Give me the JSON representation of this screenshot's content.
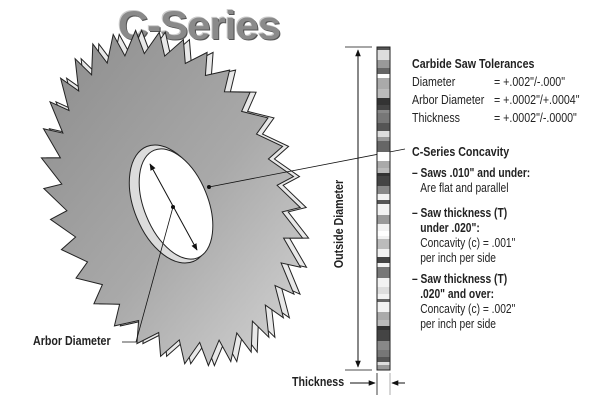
{
  "title": "C-Series",
  "tolerances": {
    "heading": "Carbide Saw Tolerances",
    "rows": [
      {
        "label": "Diameter",
        "value": "= +.002\"/-.000\""
      },
      {
        "label": "Arbor Diameter",
        "value": "= +.0002\"/+.0004\""
      },
      {
        "label": "Thickness",
        "value": "= +.0002\"/-.0000\""
      }
    ]
  },
  "concavity": {
    "heading": "C-Series Concavity",
    "items": [
      {
        "bold": "– Saws .010\" and under:",
        "text": [
          "Are flat and parallel"
        ]
      },
      {
        "bold": "– Saw thickness (T)",
        "bold2": "under .020\":",
        "text": [
          "Concavity (c) = .001\"",
          "per inch per side"
        ]
      },
      {
        "bold": "– Saw thickness (T)",
        "bold2": ".020\" and over:",
        "text": [
          "Concavity (c) = .002\"",
          "per inch per side"
        ]
      }
    ]
  },
  "labels": {
    "arbor_diameter": "Arbor Diameter",
    "outside_diameter": "Outside Diameter",
    "thickness": "Thickness"
  }
}
